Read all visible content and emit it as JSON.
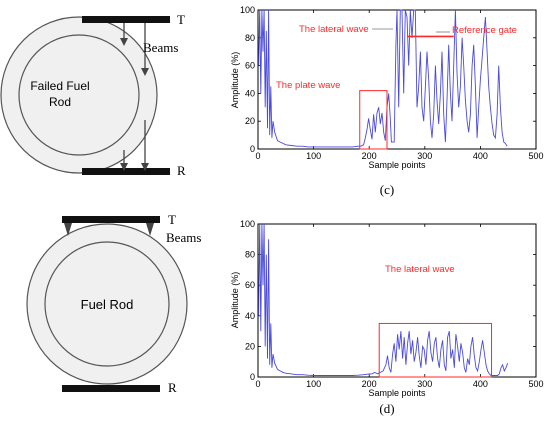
{
  "diagram_top": {
    "rod_label_line1": "Failed Fuel",
    "rod_label_line2": "Rod",
    "transmitter": "T",
    "receiver": "R",
    "beams": "Beams"
  },
  "diagram_bottom": {
    "rod_label": "Fuel Rod",
    "transmitter": "T",
    "receiver": "R",
    "beams": "Beams"
  },
  "chart_data": [
    {
      "type": "line",
      "panel_label": "(c)",
      "xlabel": "Sample points",
      "ylabel": "Amplitude (%)",
      "xlim": [
        0,
        500
      ],
      "ylim": [
        0,
        100
      ],
      "xticks": [
        0,
        100,
        200,
        300,
        400,
        500
      ],
      "yticks": [
        0,
        20,
        40,
        60,
        80,
        100
      ],
      "grid": false,
      "line_color": "#4a4ae0",
      "annotation_color": "#ff2a2a",
      "annotations": {
        "plate_wave": "The plate wave",
        "lateral_wave": "The lateral wave",
        "reference_gate": "Reference gate"
      },
      "plate_box": {
        "x": [
          183,
          232
        ],
        "y": [
          0,
          42
        ]
      },
      "reference_gate": {
        "x": [
          268,
          352
        ],
        "y": 81
      },
      "x": [
        1,
        3,
        5,
        7,
        9,
        11,
        13,
        15,
        17,
        19,
        21,
        23,
        25,
        27,
        30,
        35,
        40,
        45,
        50,
        60,
        70,
        80,
        90,
        100,
        110,
        120,
        130,
        140,
        150,
        160,
        170,
        180,
        185,
        190,
        193,
        196,
        199,
        202,
        205,
        208,
        211,
        214,
        217,
        220,
        223,
        226,
        229,
        232,
        235,
        238,
        240,
        245,
        248,
        250,
        253,
        256,
        259,
        262,
        265,
        268,
        271,
        274,
        277,
        280,
        283,
        286,
        289,
        292,
        295,
        298,
        301,
        304,
        307,
        310,
        313,
        316,
        319,
        322,
        325,
        328,
        331,
        334,
        337,
        340,
        343,
        346,
        349,
        352,
        355,
        358,
        361,
        364,
        367,
        370,
        373,
        376,
        379,
        382,
        385,
        388,
        391,
        394,
        397,
        400,
        403,
        406,
        409,
        412,
        415,
        418,
        421,
        424,
        427,
        430,
        433,
        436,
        439,
        442,
        445,
        448
      ],
      "values": [
        60,
        100,
        40,
        100,
        70,
        100,
        30,
        85,
        15,
        100,
        10,
        45,
        8,
        20,
        12,
        6,
        5,
        4,
        3,
        2.5,
        2,
        2,
        1.5,
        1.5,
        1.5,
        1.5,
        1.5,
        1.5,
        1.5,
        1.5,
        1.5,
        2,
        2,
        3,
        8,
        14,
        22,
        14,
        7,
        25,
        12,
        26,
        30,
        18,
        26,
        12,
        6,
        30,
        40,
        22,
        5,
        5,
        75,
        100,
        30,
        100,
        100,
        40,
        100,
        95,
        60,
        100,
        80,
        100,
        100,
        30,
        45,
        70,
        30,
        20,
        45,
        70,
        50,
        20,
        8,
        25,
        60,
        35,
        18,
        40,
        70,
        25,
        5,
        35,
        75,
        40,
        20,
        60,
        100,
        55,
        30,
        45,
        80,
        60,
        35,
        20,
        12,
        25,
        60,
        75,
        45,
        8,
        30,
        50,
        65,
        80,
        95,
        70,
        45,
        30,
        18,
        10,
        8,
        25,
        60,
        30,
        12,
        5,
        4,
        2
      ],
      "series": [
        {
          "name": ""
        }
      ]
    },
    {
      "type": "line",
      "panel_label": "(d)",
      "xlabel": "Sample points",
      "ylabel": "Amplitude (%)",
      "xlim": [
        0,
        500
      ],
      "ylim": [
        0,
        100
      ],
      "xticks": [
        0,
        100,
        200,
        300,
        400,
        500
      ],
      "yticks": [
        0,
        20,
        40,
        60,
        80,
        100
      ],
      "grid": false,
      "line_color": "#4a4ae0",
      "annotation_color": "#ff2a2a",
      "annotations": {
        "lateral_wave": "The lateral wave"
      },
      "lateral_box": {
        "x": [
          218,
          420
        ],
        "y": [
          0,
          35
        ]
      },
      "x": [
        1,
        3,
        5,
        7,
        9,
        11,
        13,
        15,
        17,
        19,
        21,
        23,
        25,
        27,
        30,
        35,
        40,
        45,
        50,
        60,
        70,
        80,
        90,
        100,
        110,
        120,
        130,
        140,
        150,
        160,
        170,
        180,
        190,
        200,
        205,
        210,
        215,
        220,
        225,
        230,
        233,
        236,
        239,
        242,
        245,
        248,
        251,
        254,
        257,
        260,
        263,
        266,
        269,
        272,
        275,
        278,
        281,
        284,
        287,
        290,
        293,
        296,
        299,
        302,
        305,
        308,
        311,
        314,
        317,
        320,
        323,
        326,
        329,
        332,
        335,
        338,
        341,
        344,
        347,
        350,
        353,
        356,
        359,
        362,
        365,
        368,
        371,
        374,
        377,
        380,
        383,
        386,
        389,
        392,
        395,
        398,
        401,
        404,
        407,
        410,
        413,
        416,
        419,
        422,
        425,
        428,
        431,
        434,
        437,
        440,
        443,
        446,
        449
      ],
      "values": [
        40,
        100,
        30,
        100,
        60,
        100,
        20,
        80,
        12,
        90,
        8,
        35,
        6,
        15,
        9,
        5,
        4,
        3,
        2.5,
        2,
        1.5,
        1.5,
        1.2,
        1,
        1,
        1,
        1,
        1,
        1,
        1,
        1,
        1.2,
        1.5,
        2,
        2,
        3,
        2,
        3,
        4,
        8,
        14,
        6,
        3,
        15,
        22,
        10,
        28,
        18,
        30,
        12,
        26,
        8,
        22,
        30,
        15,
        24,
        10,
        16,
        26,
        14,
        6,
        20,
        18,
        8,
        24,
        30,
        16,
        10,
        22,
        26,
        12,
        6,
        18,
        24,
        8,
        4,
        26,
        30,
        12,
        18,
        6,
        28,
        20,
        10,
        22,
        16,
        6,
        3,
        12,
        8,
        20,
        26,
        14,
        6,
        4,
        10,
        18,
        24,
        16,
        8,
        4,
        2,
        1,
        1,
        1,
        1,
        1,
        2,
        6,
        8,
        4,
        6,
        9
      ],
      "series": [
        {
          "name": ""
        }
      ]
    }
  ]
}
